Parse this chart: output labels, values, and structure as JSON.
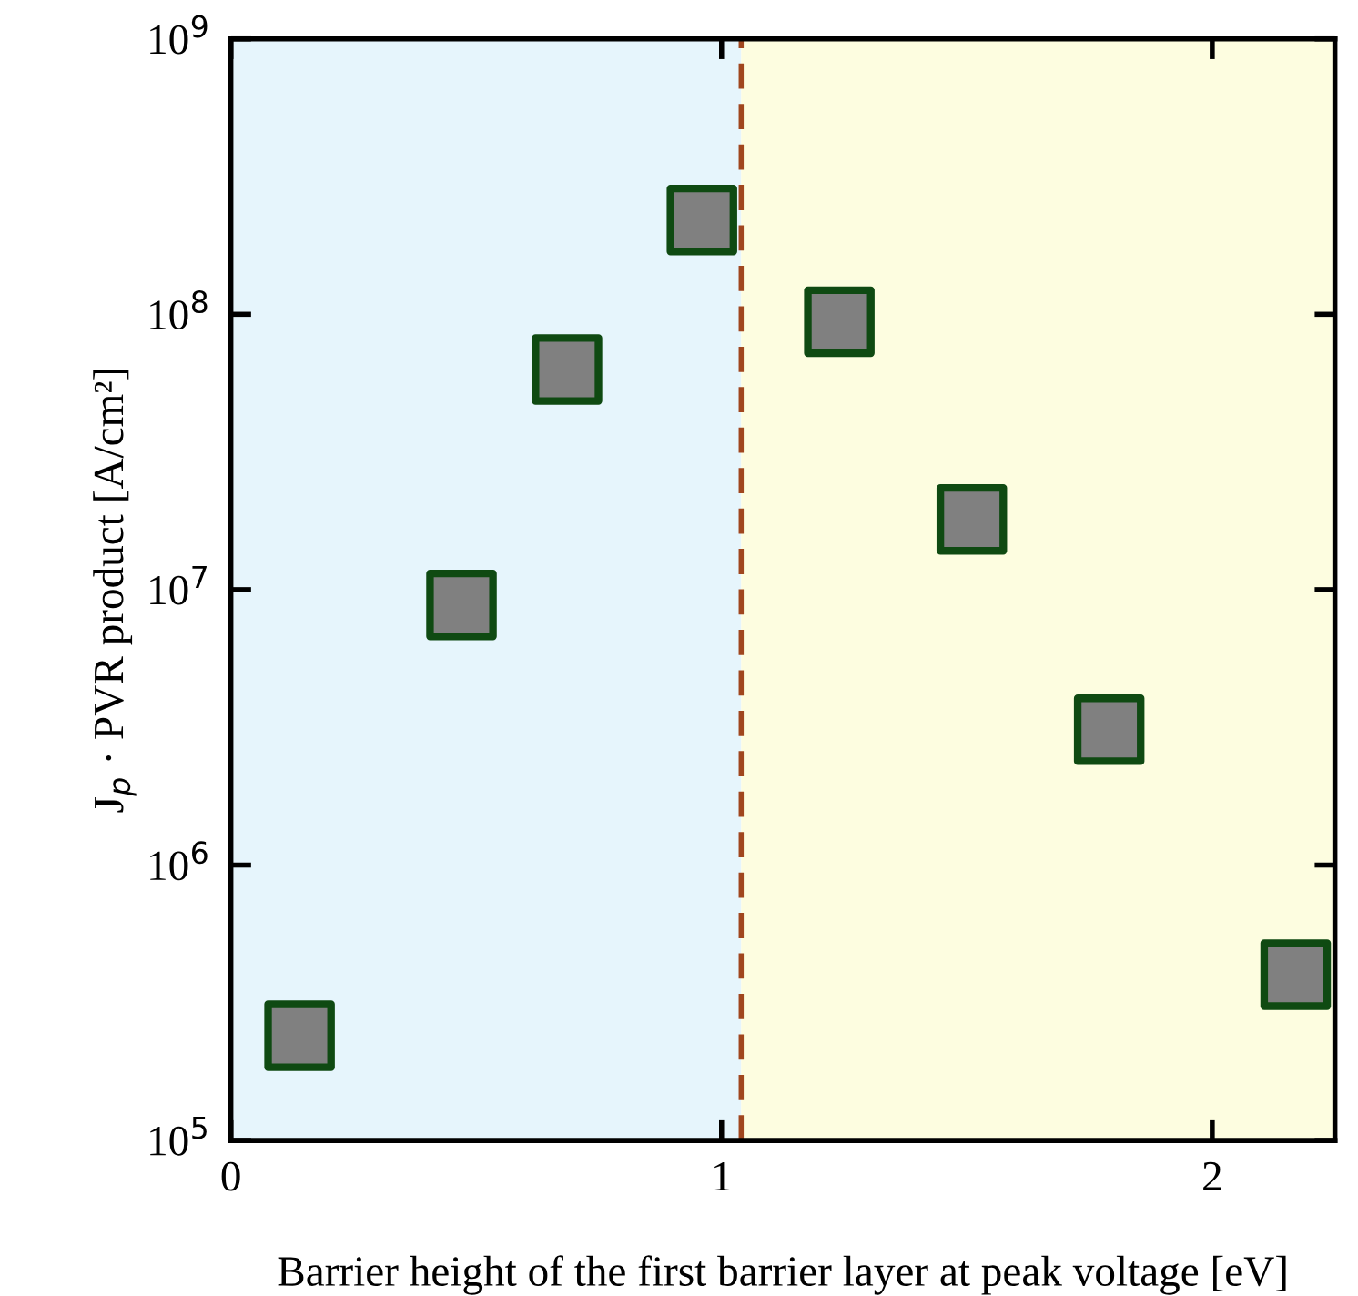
{
  "chart_data": {
    "type": "scatter",
    "xlabel": "Barrier height of the first barrier layer at peak voltage [eV]",
    "ylabel": "J$_{p}$ · PVR product [A/cm²]",
    "x": [
      0.14,
      0.47,
      0.685,
      0.96,
      1.24,
      1.51,
      1.79,
      2.17
    ],
    "series": [
      {
        "color": "#808080",
        "values": [
          240000.0,
          8800000.0,
          63000000.0,
          220000000.0,
          94000000.0,
          18000000.0,
          3100000.0,
          400000.0
        ]
      }
    ],
    "marker": "square",
    "log": "y",
    "grid": false,
    "legend": false,
    "xlim": [
      0,
      2.25
    ],
    "xticks": [
      0,
      1,
      2
    ],
    "ylim": [
      100000.0,
      1000000000.0
    ],
    "yticks": [
      {
        "value": 100000.0,
        "label": "10$^{5}$"
      },
      {
        "value": 1000000.0,
        "label": "10$^{6}$"
      },
      {
        "value": 10000000.0,
        "label": "10$^{7}$"
      },
      {
        "value": 100000000.0,
        "label": "10$^{8}$"
      },
      {
        "value": 1000000000.0,
        "label": "10$^{9}$"
      }
    ],
    "ref_lines": [
      {
        "axis": "x",
        "value": 1.04,
        "color": "#a0461e",
        "line_style": "dashed"
      }
    ],
    "bands": [
      {
        "axis": "x",
        "from": 0,
        "to": 1.04,
        "color": "#e6f5fc"
      },
      {
        "axis": "x",
        "from": 1.04,
        "to": 2.25,
        "color": "#fdfde0"
      }
    ]
  }
}
